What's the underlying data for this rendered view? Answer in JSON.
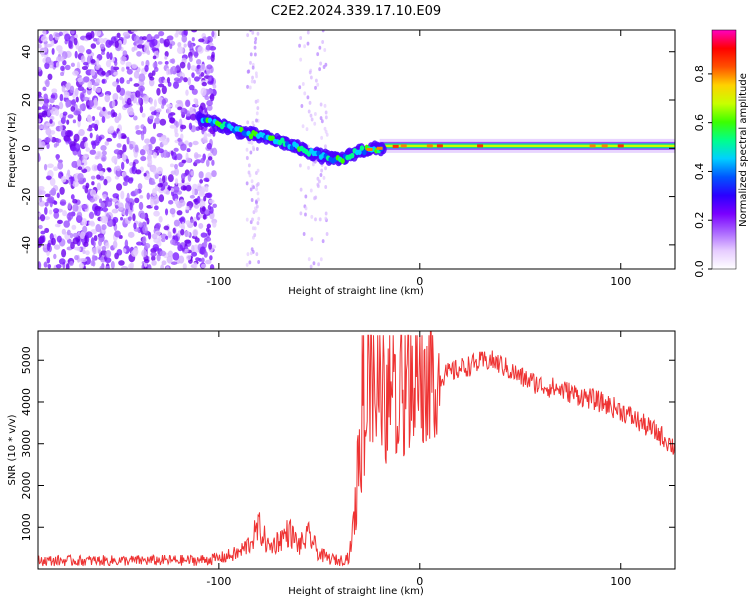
{
  "title": "C2E2.2024.339.17.10.E09",
  "chart_data": [
    {
      "type": "heatmap",
      "xlabel": "Height of straight line (km)",
      "ylabel": "Frequency (Hz)",
      "xlim": [
        -190,
        127
      ],
      "ylim": [
        -50,
        49
      ],
      "x_ticks": [
        -100,
        0,
        100
      ],
      "x_tick_labels": [
        "-100",
        "0",
        "100"
      ],
      "y_ticks": [
        -40,
        -20,
        0,
        20,
        40
      ],
      "y_tick_labels": [
        "-40",
        "-20",
        "0",
        "20",
        "40"
      ],
      "colorbar": {
        "label": "Normalized spectral amplitude",
        "range": [
          0,
          0.98
        ],
        "ticks": [
          0.0,
          0.2,
          0.4,
          0.6,
          0.8
        ],
        "tick_labels": [
          "0.0",
          "0.2",
          "0.4",
          "0.6",
          "0.8"
        ],
        "colormap": [
          "#ffffff",
          "#e6ccff",
          "#aa66ff",
          "#7a00ff",
          "#2b00ff",
          "#0055ff",
          "#00d0ff",
          "#00ff8c",
          "#3cff00",
          "#c8ff00",
          "#ffd200",
          "#ff5000",
          "#ff0000",
          "#ff00c0"
        ]
      },
      "noise_region_km": [
        -190,
        -110
      ],
      "noise_bands_km": [
        [
          -86,
          -80
        ],
        [
          -60,
          -46
        ]
      ],
      "ridge": {
        "x": [
          -110,
          -100,
          -90,
          -80,
          -70,
          -60,
          -50,
          -45,
          -40,
          -35,
          -30,
          -20,
          -10,
          0,
          20,
          50,
          100,
          127
        ],
        "y": [
          12,
          10,
          7,
          5,
          3,
          0,
          -3,
          -4,
          -5,
          -3,
          -1,
          0,
          1,
          1,
          1,
          1,
          1,
          1
        ]
      }
    },
    {
      "type": "line",
      "xlabel": "Height of straight line (km)",
      "ylabel": "SNR (10 * v/v)",
      "xlim": [
        -190,
        127
      ],
      "ylim": [
        0,
        5700
      ],
      "x_ticks": [
        -100,
        0,
        100
      ],
      "x_tick_labels": [
        "-100",
        "0",
        "100"
      ],
      "y_ticks": [
        1000,
        2000,
        3000,
        4000,
        5000
      ],
      "y_tick_labels": [
        "1000",
        "2000",
        "3000",
        "4000",
        "5000"
      ],
      "color": "#ee3333",
      "series": [
        {
          "x": [
            -190,
            -150,
            -110,
            -100,
            -90,
            -85,
            -80,
            -75,
            -70,
            -65,
            -60,
            -55,
            -50,
            -45,
            -40,
            -35,
            -32,
            -30,
            -25,
            -20,
            -15,
            -10,
            -5,
            0,
            10,
            20,
            30,
            35,
            40,
            50,
            60,
            70,
            80,
            90,
            100,
            110,
            120,
            127
          ],
          "values": [
            200,
            200,
            210,
            250,
            380,
            600,
            1000,
            500,
            700,
            900,
            550,
            800,
            350,
            250,
            200,
            300,
            1500,
            2800,
            3800,
            3600,
            4000,
            3800,
            4200,
            4300,
            4600,
            4800,
            4950,
            5000,
            4900,
            4600,
            4400,
            4300,
            4150,
            4000,
            3800,
            3500,
            3200,
            2900
          ]
        }
      ]
    }
  ]
}
